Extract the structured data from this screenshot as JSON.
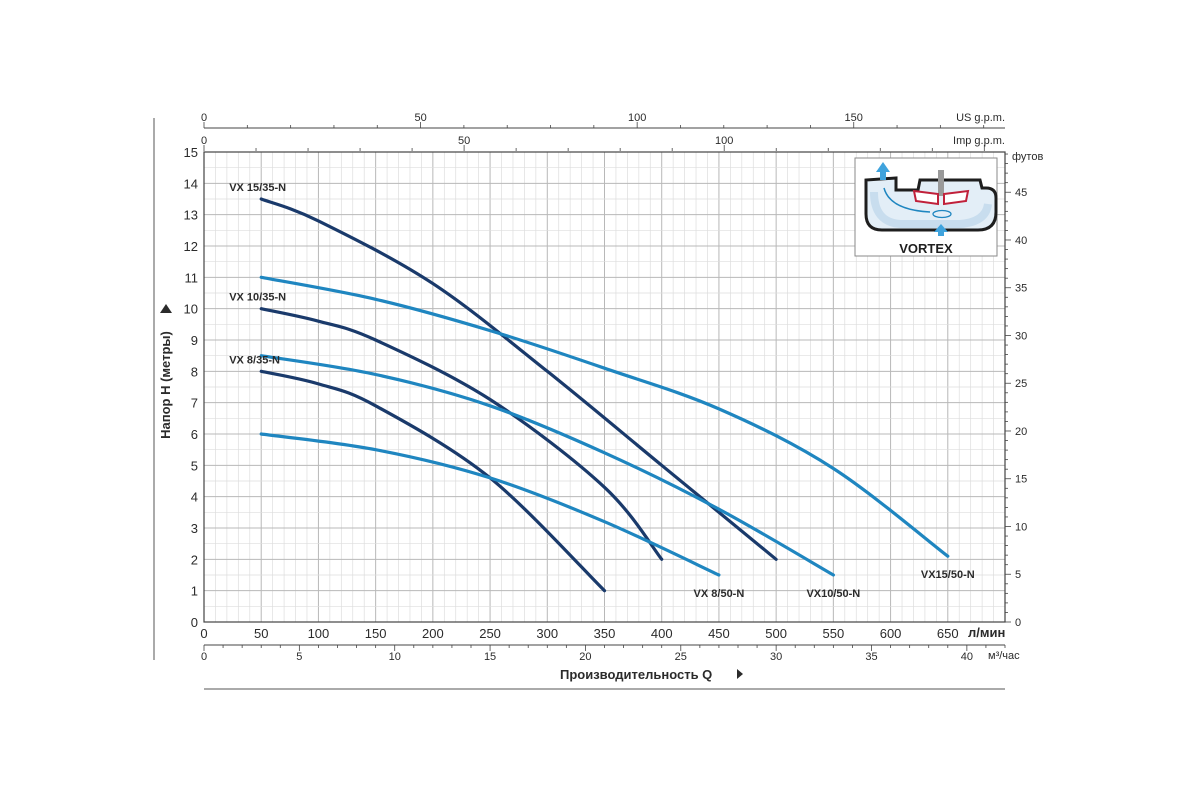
{
  "chart_data": {
    "type": "line",
    "xlabel": "Производительность Q",
    "xunit": "л/мин",
    "ylabel": "Напор H (метры)",
    "yunit_right": "футов",
    "xlim": [
      0,
      700
    ],
    "ylim": [
      0,
      15
    ],
    "grid": true,
    "x_ticks": [
      0,
      50,
      100,
      150,
      200,
      250,
      300,
      350,
      400,
      450,
      500,
      550,
      600,
      650
    ],
    "y_ticks": [
      0,
      1,
      2,
      3,
      4,
      5,
      6,
      7,
      8,
      9,
      10,
      11,
      12,
      13,
      14,
      15
    ],
    "feet_ticks": [
      0,
      5,
      10,
      15,
      20,
      25,
      30,
      35,
      40,
      45
    ],
    "m3h_unit": "м³/час",
    "m3h_ticks": [
      0,
      5,
      10,
      15,
      20,
      25,
      30,
      35,
      40
    ],
    "usgpm_unit": "US g.p.m.",
    "usgpm_ticks": [
      0,
      50,
      100,
      150
    ],
    "impgpm_unit": "Imp g.p.m.",
    "impgpm_ticks": [
      0,
      50,
      100
    ],
    "logo_label": "VORTEX",
    "colors": {
      "dark": "#1a3a6b",
      "light": "#1f86c0",
      "grid": "#c8c8c8"
    },
    "series": [
      {
        "name": "VX 15/35-N",
        "color": "#1a3a6b",
        "x": [
          50,
          100,
          200,
          300,
          400,
          500
        ],
        "y": [
          13.5,
          12.8,
          10.8,
          8.0,
          5.0,
          2.0
        ]
      },
      {
        "name": "VX 10/35-N",
        "color": "#1a3a6b",
        "x": [
          50,
          100,
          150,
          250,
          350,
          400
        ],
        "y": [
          10.0,
          9.6,
          9.0,
          7.1,
          4.3,
          2.0
        ]
      },
      {
        "name": "VX 8/35-N",
        "color": "#1a3a6b",
        "x": [
          50,
          100,
          150,
          250,
          350
        ],
        "y": [
          8.0,
          7.6,
          6.9,
          4.6,
          1.0
        ]
      },
      {
        "name": "VX15/50-N",
        "color": "#1f86c0",
        "x": [
          50,
          150,
          250,
          350,
          450,
          550,
          650
        ],
        "y": [
          11.0,
          10.3,
          9.3,
          8.1,
          6.8,
          4.9,
          2.1
        ]
      },
      {
        "name": "VX10/50-N",
        "color": "#1f86c0",
        "x": [
          50,
          150,
          250,
          350,
          450,
          550
        ],
        "y": [
          8.5,
          7.9,
          6.9,
          5.4,
          3.6,
          1.5
        ]
      },
      {
        "name": "VX 8/50-N",
        "color": "#1f86c0",
        "x": [
          50,
          150,
          250,
          350,
          450
        ],
        "y": [
          6.0,
          5.5,
          4.6,
          3.2,
          1.5
        ]
      }
    ]
  }
}
